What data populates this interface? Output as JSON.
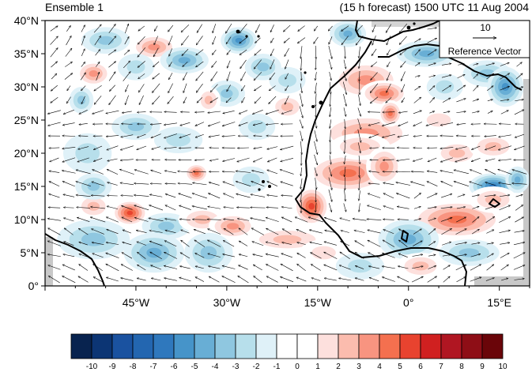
{
  "header": {
    "left_title": "Ensemble 1",
    "right_title": "(15 h forecast) 1500 UTC 11 Aug 2004"
  },
  "map": {
    "lat_range": [
      0,
      40
    ],
    "lon_range": [
      -60,
      20
    ],
    "lat_labels": [
      "0°",
      "5°N",
      "10°N",
      "15°N",
      "20°N",
      "25°N",
      "30°N",
      "35°N",
      "40°N"
    ],
    "lon_labels": [
      "45°W",
      "30°W",
      "15°W",
      "0°",
      "15°E"
    ],
    "lon_label_values": [
      -45,
      -30,
      -15,
      0,
      15
    ],
    "reference_vector": {
      "magnitude": "10",
      "label": "Reference Vector"
    }
  },
  "colorbar": {
    "levels": [
      "-10",
      "-9",
      "-8",
      "-7",
      "-6",
      "-5",
      "-4",
      "-3",
      "-2",
      "-1",
      "0",
      "1",
      "2",
      "3",
      "4",
      "5",
      "6",
      "7",
      "8",
      "9",
      "10"
    ],
    "colors": [
      "#08234f",
      "#0c3574",
      "#1a52a0",
      "#2366b0",
      "#2f78bd",
      "#4694c9",
      "#68aed5",
      "#8fc7e0",
      "#b7dfeb",
      "#dff1f8",
      "#ffffff",
      "#ffffff",
      "#fde0dd",
      "#fbbcae",
      "#f89480",
      "#f4704f",
      "#e8432f",
      "#d02020",
      "#b01622",
      "#8e0e16",
      "#6a0509"
    ]
  }
}
